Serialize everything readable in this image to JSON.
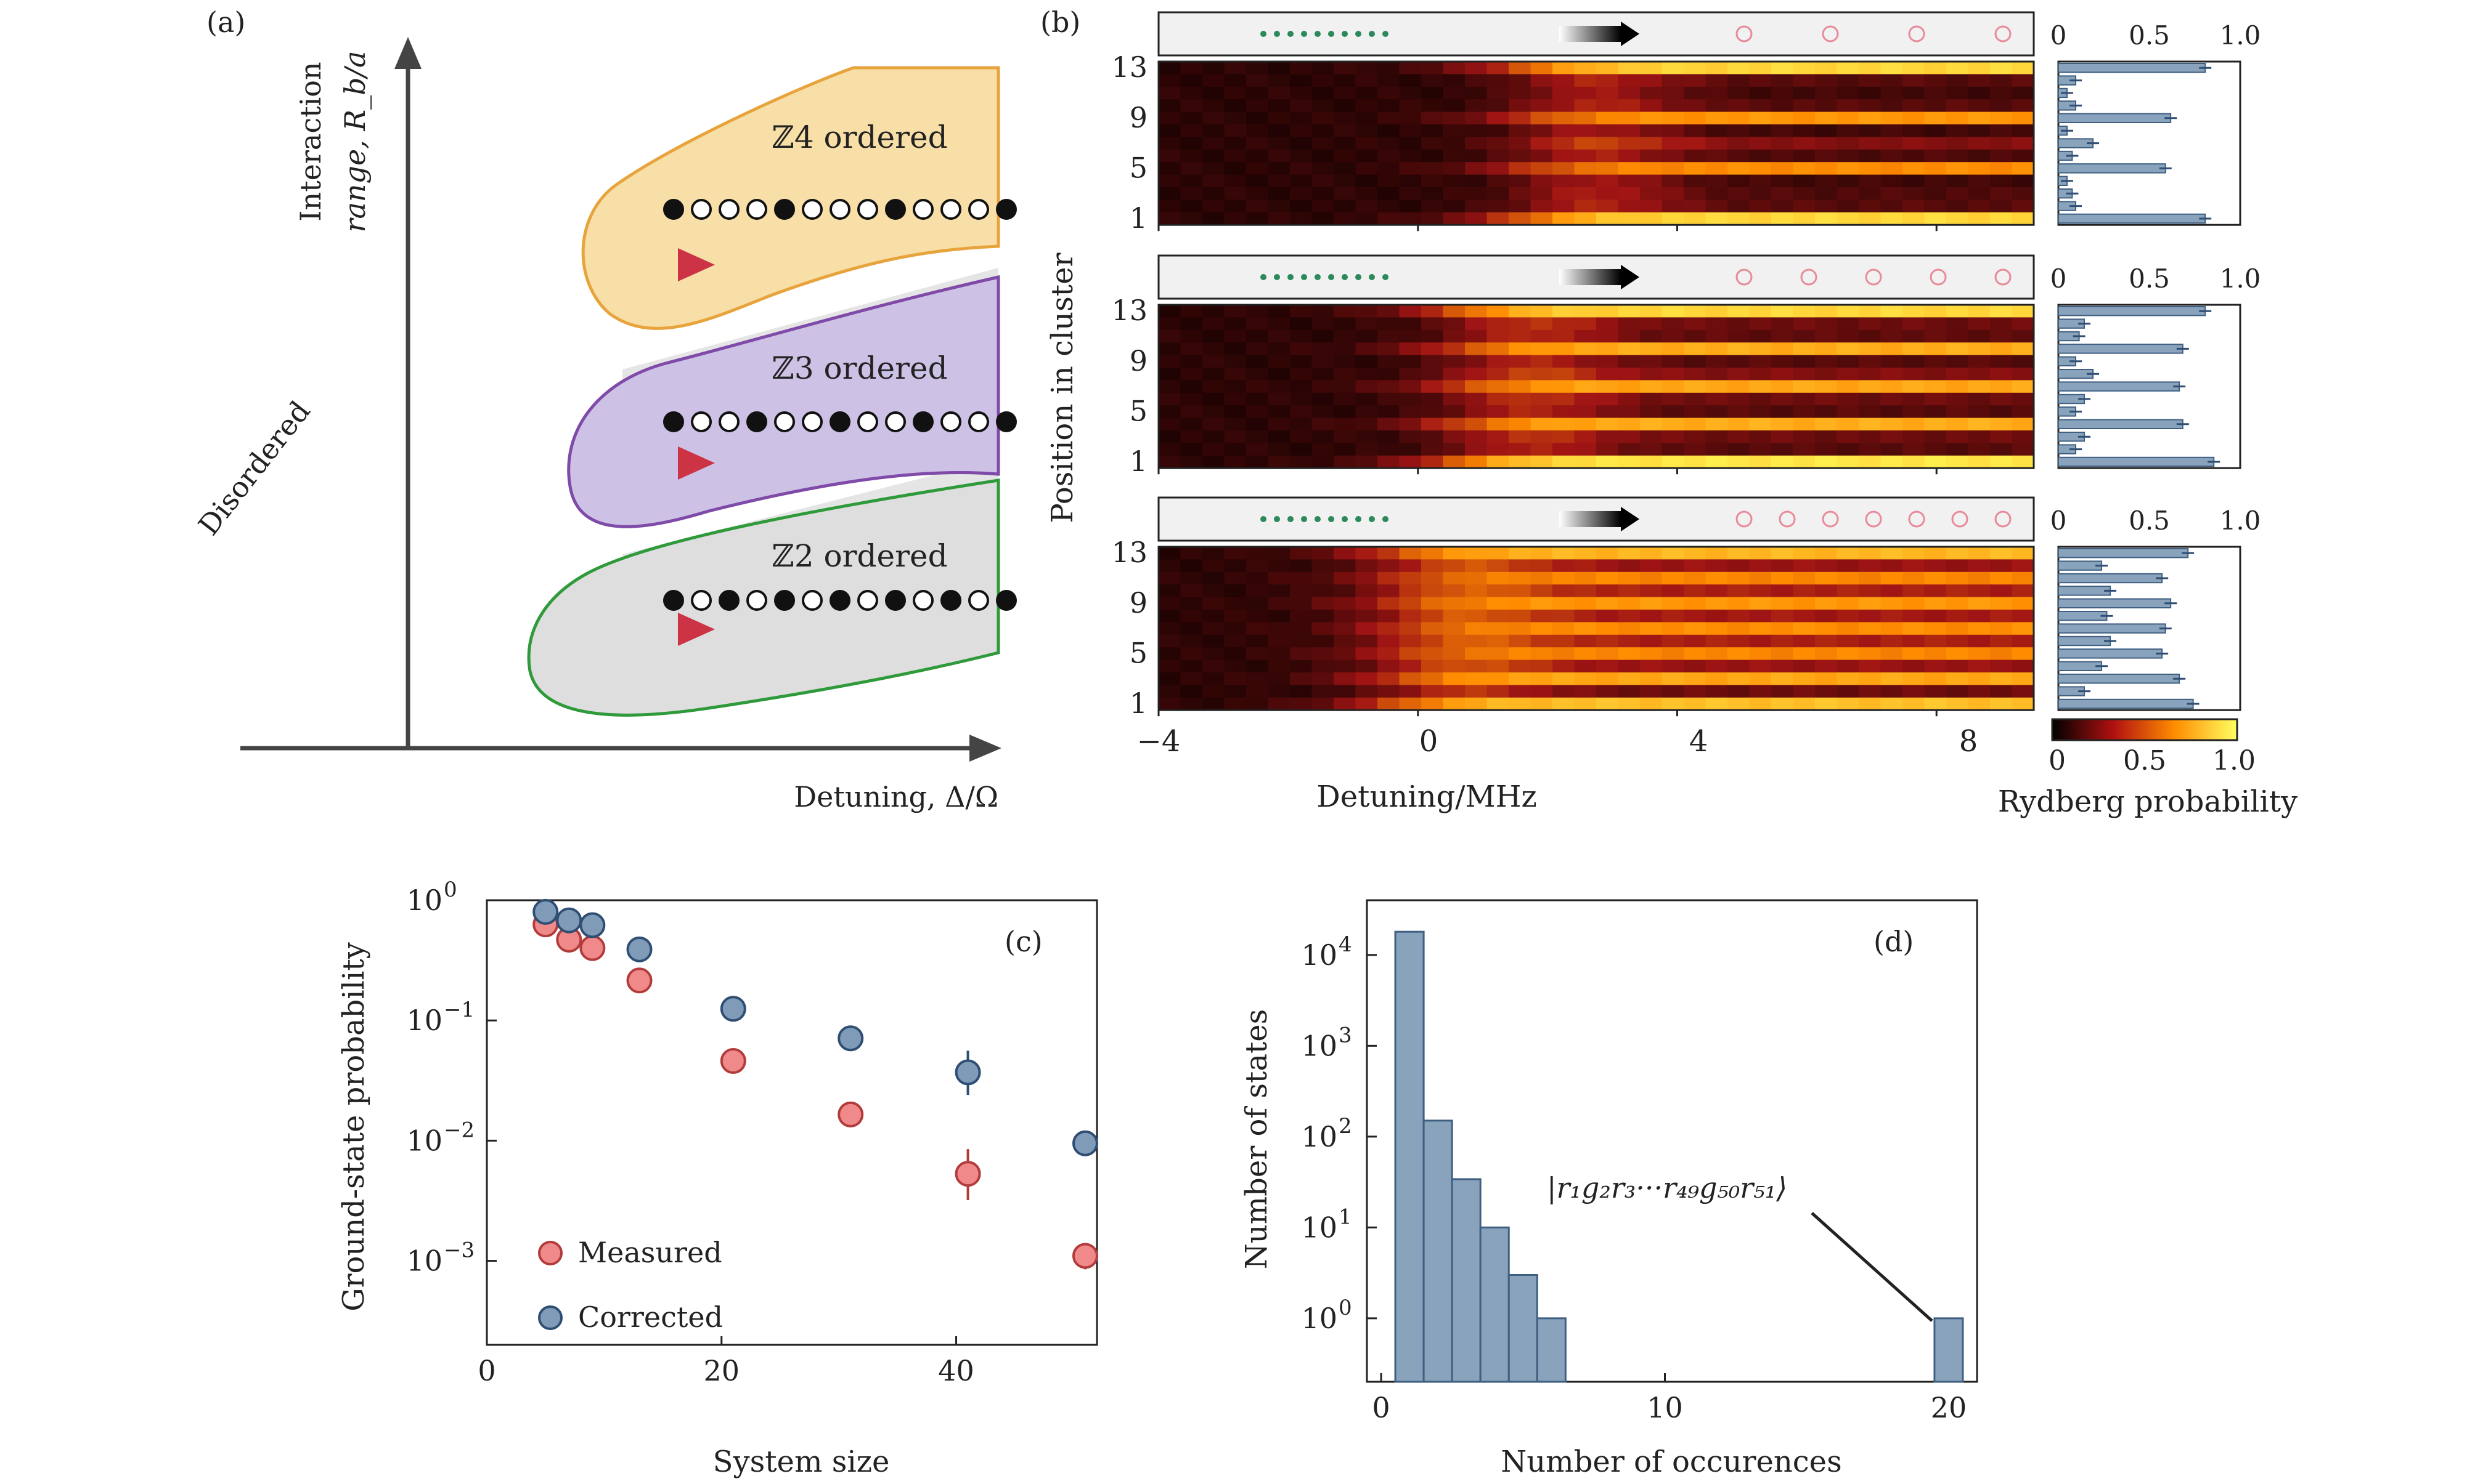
{
  "panel_labels": {
    "a": "(a)",
    "b": "(b)",
    "c": "(c)",
    "d": "(d)"
  },
  "colors": {
    "z4_fill": "#f8dfa8",
    "z4_edge": "#e8a43c",
    "z3_fill": "#cdc2e6",
    "z3_edge": "#7f4aa8",
    "z2_fill": "#dedede",
    "z2_edge": "#2f9a3a",
    "arrow": "#cc3344",
    "hist_bar": "#8aa3bd",
    "hist_edge": "#3f5f80",
    "measured_fill": "#f08a8a",
    "measured_edge": "#b23b3b",
    "corrected_fill": "#7f9bb8",
    "corrected_edge": "#2f4e73"
  },
  "phase_diagram": {
    "y_label_line1": "Interaction",
    "y_label_line2": "range, R_b/a",
    "x_label": "Detuning, Δ/Ω",
    "disordered_label": "Disordered",
    "phases": [
      {
        "label": "ℤ4 ordered",
        "pattern": [
          1,
          0,
          0,
          0,
          1,
          0,
          0,
          0,
          1,
          0,
          0,
          0,
          1
        ]
      },
      {
        "label": "ℤ3 ordered",
        "pattern": [
          1,
          0,
          0,
          1,
          0,
          0,
          1,
          0,
          0,
          1,
          0,
          0,
          1
        ]
      },
      {
        "label": "ℤ2 ordered",
        "pattern": [
          1,
          0,
          1,
          0,
          1,
          0,
          1,
          0,
          1,
          0,
          1,
          0,
          1
        ]
      }
    ]
  },
  "heatmaps": {
    "y_label": "Position in cluster",
    "x_label": "Detuning/MHz",
    "x_ticks": [
      "−4",
      "0",
      "4",
      "8"
    ],
    "y_ticks": [
      "13",
      "9",
      "5",
      "1"
    ],
    "bar_axis_ticks": [
      "0",
      "0.5",
      "1.0"
    ],
    "colorbar_label": "Rydberg probability",
    "colorbar_ticks": [
      "0",
      "0.5",
      "1.0"
    ]
  },
  "chart_data": [
    {
      "type": "heatmap",
      "panel": "b",
      "xlabel": "Detuning/MHz",
      "ylabel": "Position in cluster",
      "xlim": [
        -4,
        9.5
      ],
      "ylim": [
        0.5,
        13.5
      ],
      "colorbar": {
        "label": "Rydberg probability",
        "range": [
          0,
          1
        ]
      },
      "clusters": [
        {
          "order": "Z4",
          "final_rydberg_probability": [
            0.85,
            0.1,
            0.08,
            0.05,
            0.62,
            0.08,
            0.2,
            0.05,
            0.65,
            0.1,
            0.05,
            0.1,
            0.85
          ]
        },
        {
          "order": "Z3",
          "final_rydberg_probability": [
            0.9,
            0.1,
            0.15,
            0.72,
            0.1,
            0.15,
            0.7,
            0.2,
            0.1,
            0.72,
            0.12,
            0.15,
            0.85
          ]
        },
        {
          "order": "Z2",
          "final_rydberg_probability": [
            0.78,
            0.15,
            0.7,
            0.25,
            0.6,
            0.3,
            0.62,
            0.28,
            0.65,
            0.3,
            0.6,
            0.25,
            0.75
          ]
        }
      ]
    },
    {
      "type": "scatter",
      "panel": "c",
      "xlabel": "System size",
      "ylabel": "Ground-state probability",
      "xlim": [
        0,
        52
      ],
      "ylim": [
        0.0002,
        1.0
      ],
      "y_scale": "log",
      "x_ticks": [
        "0",
        "20",
        "40"
      ],
      "y_tick_base": "10",
      "y_tick_exponents": [
        "0",
        "−1",
        "−2",
        "−3"
      ],
      "series": [
        {
          "name": "Measured",
          "x": [
            5,
            7,
            9,
            13,
            21,
            31,
            41,
            51
          ],
          "y": [
            0.63,
            0.47,
            0.4,
            0.215,
            0.046,
            0.0165,
            0.0053,
            0.0011
          ],
          "err_low": [
            0.6,
            0.45,
            0.38,
            0.205,
            0.044,
            0.0155,
            0.0032,
            0.00085
          ],
          "err_high": [
            0.66,
            0.5,
            0.42,
            0.225,
            0.048,
            0.0175,
            0.0085,
            0.0013
          ]
        },
        {
          "name": "Corrected",
          "x": [
            5,
            7,
            9,
            13,
            21,
            31,
            41,
            51
          ],
          "y": [
            0.8,
            0.68,
            0.62,
            0.39,
            0.125,
            0.071,
            0.037,
            0.0095
          ],
          "err_low": [
            0.77,
            0.65,
            0.59,
            0.37,
            0.118,
            0.066,
            0.024,
            0.0088
          ],
          "err_high": [
            0.83,
            0.71,
            0.65,
            0.41,
            0.132,
            0.076,
            0.056,
            0.0102
          ]
        }
      ],
      "legend": "lower-left"
    },
    {
      "type": "bar",
      "panel": "d",
      "xlabel": "Number of occurences",
      "ylabel": "Number of states",
      "y_scale": "log",
      "xlim": [
        -0.5,
        21
      ],
      "ylim": [
        0.2,
        40000
      ],
      "x_ticks": [
        "0",
        "10",
        "20"
      ],
      "y_tick_base": "10",
      "y_tick_exponents": [
        "4",
        "3",
        "2",
        "1",
        "0"
      ],
      "categories": [
        1,
        2,
        3,
        4,
        5,
        6,
        20
      ],
      "values": [
        18000,
        150,
        34,
        10,
        3,
        1,
        1
      ],
      "annotation": {
        "text": "|r₁g₂r₃···r₄₉g₅₀r₅₁⟩",
        "points_to": 20
      }
    }
  ]
}
